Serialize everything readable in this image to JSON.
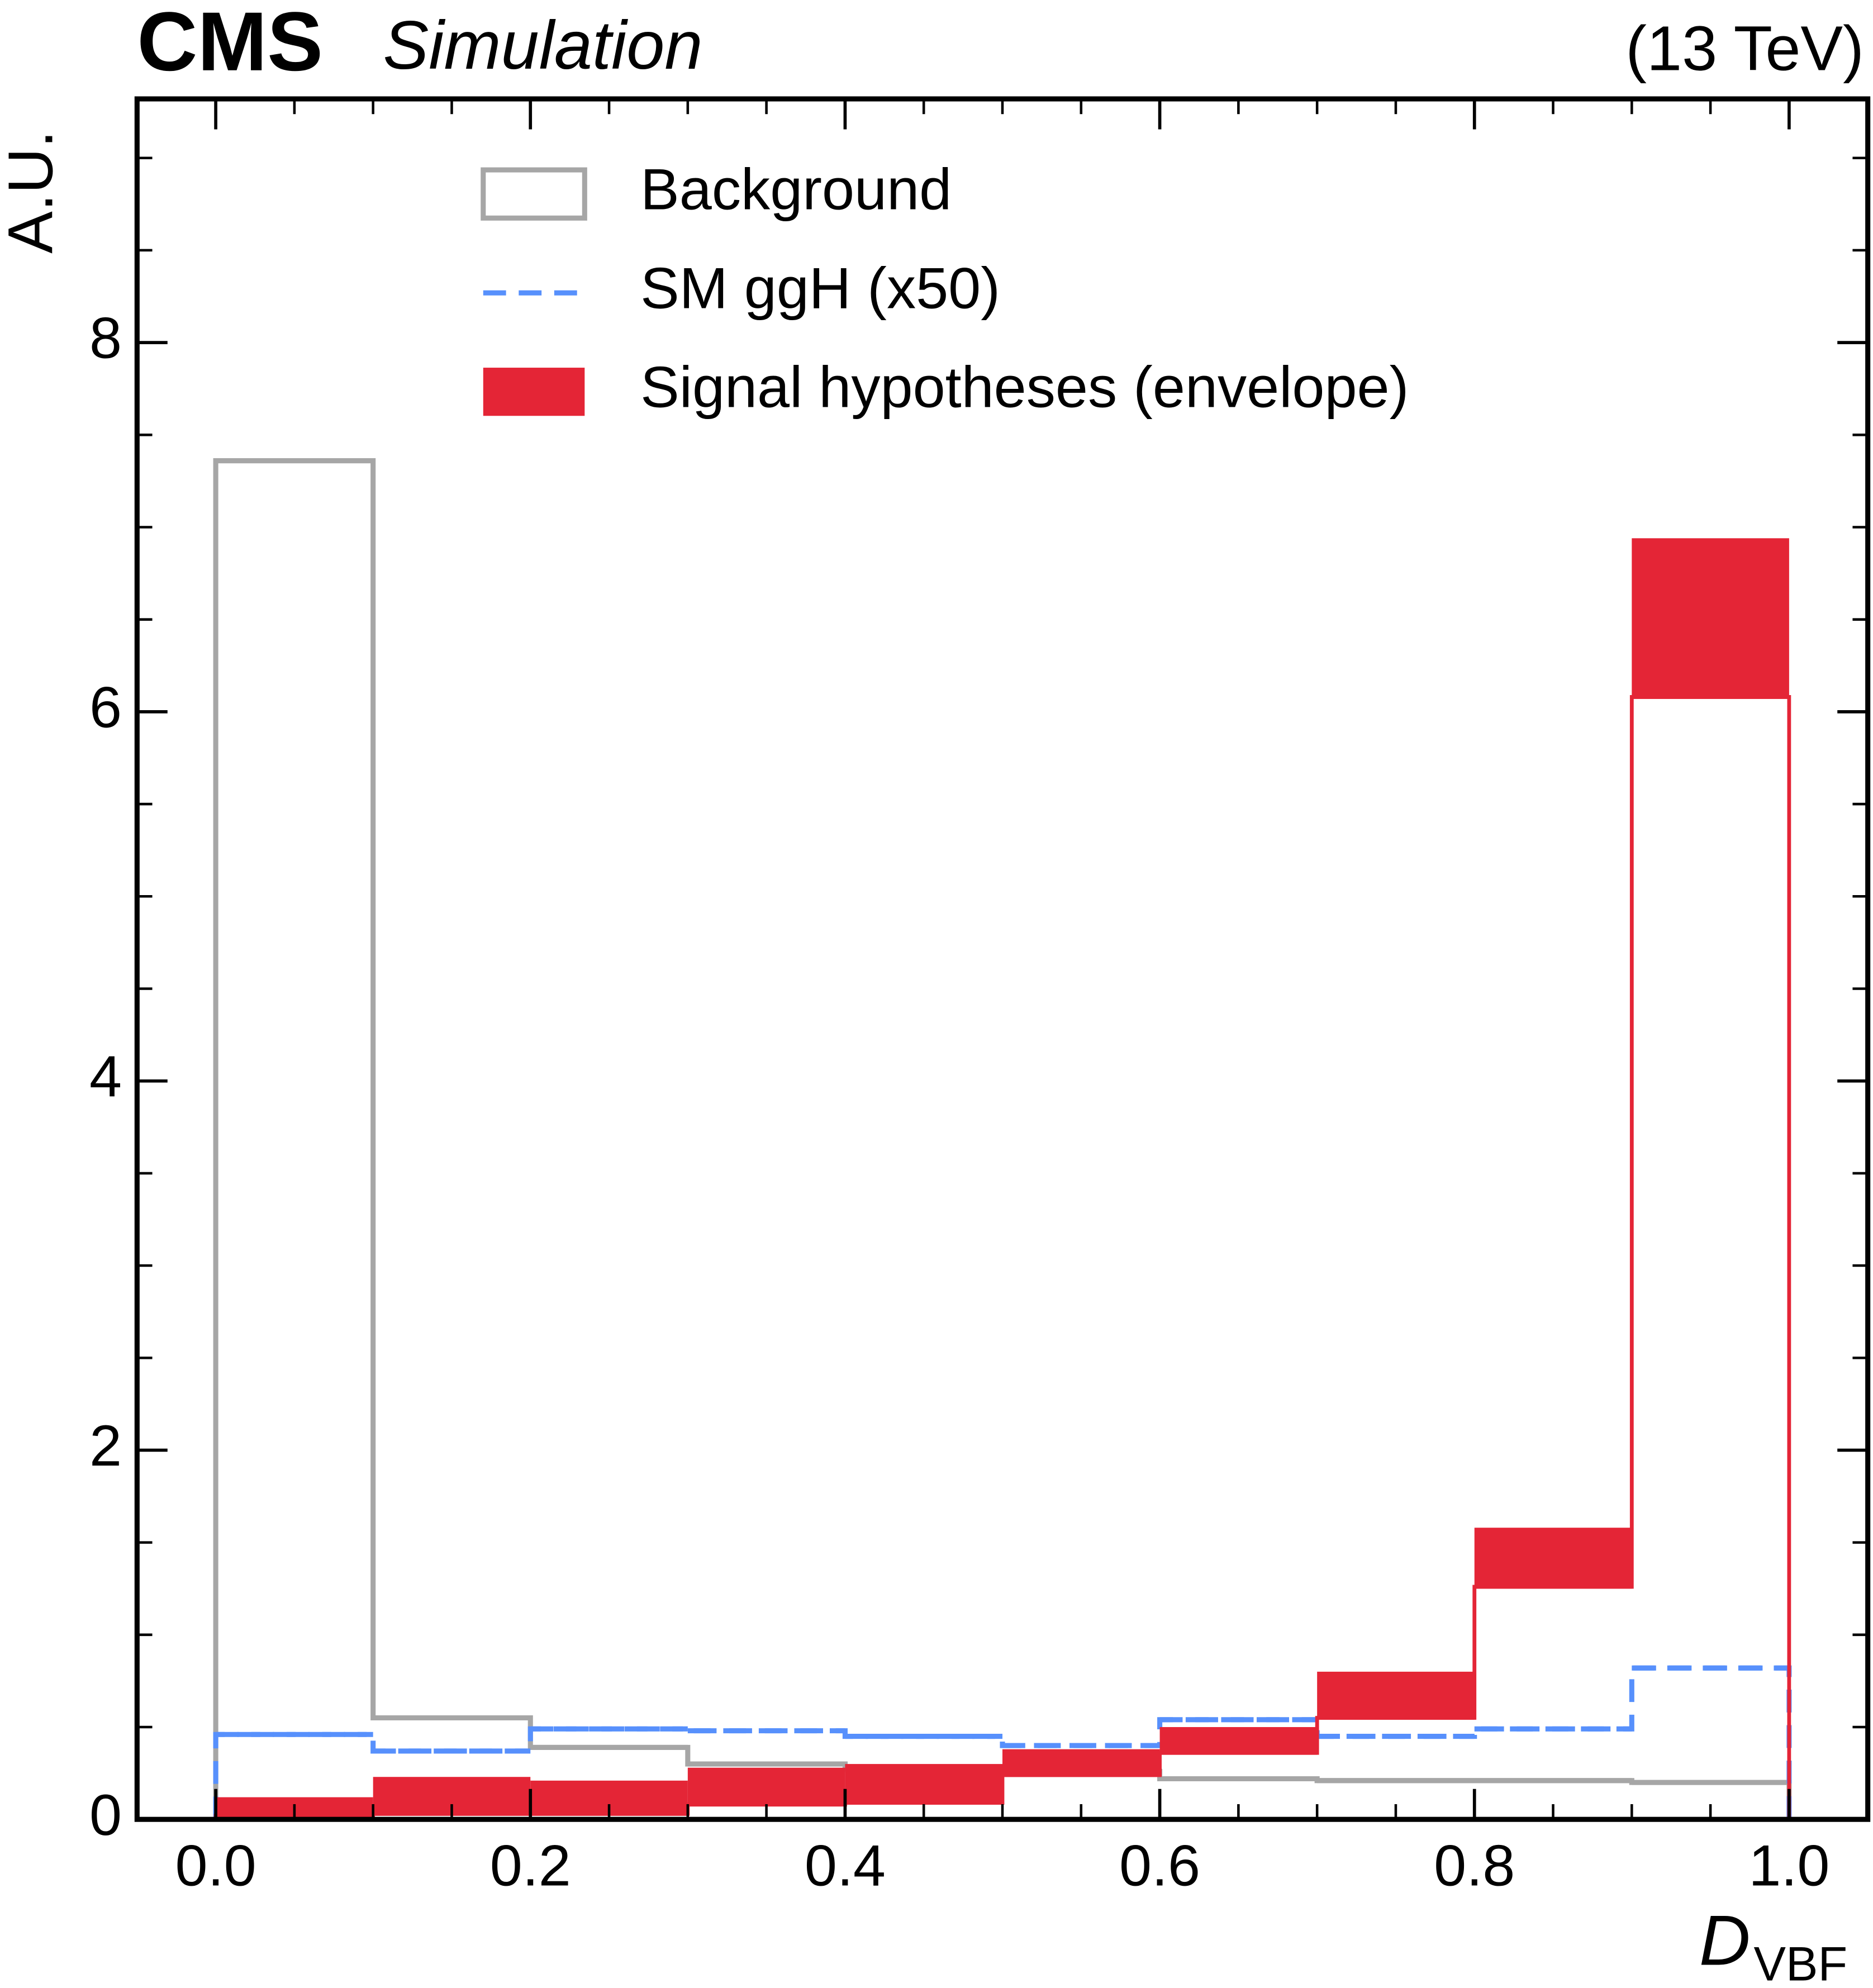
{
  "chart_data": {
    "type": "histogram",
    "experiment": "CMS",
    "status": "Simulation",
    "energy": "(13 TeV)",
    "ylabel": "A.U.",
    "xlabel": {
      "symbol": "D",
      "subscript": "VBF"
    },
    "bins": [
      0,
      0.1,
      0.2,
      0.3,
      0.4,
      0.5,
      0.6,
      0.7,
      0.8,
      0.9,
      1.0
    ],
    "series": [
      {
        "name": "Background",
        "color": "#a6a6a6",
        "style": "outline",
        "values": [
          7.36,
          0.55,
          0.39,
          0.3,
          0.27,
          0.26,
          0.22,
          0.21,
          0.21,
          0.2
        ]
      },
      {
        "name": "SM ggH (x50)",
        "color": "#5790fc",
        "style": "dashed",
        "values": [
          0.46,
          0.37,
          0.49,
          0.48,
          0.45,
          0.4,
          0.54,
          0.45,
          0.49,
          0.82
        ]
      },
      {
        "name": "Signal hypotheses (envelope)",
        "color": "#e42536",
        "style": "envelope",
        "low": [
          0.02,
          0.03,
          0.03,
          0.08,
          0.09,
          0.24,
          0.36,
          0.55,
          1.26,
          6.08
        ],
        "high": [
          0.12,
          0.23,
          0.21,
          0.28,
          0.3,
          0.38,
          0.5,
          0.8,
          1.58,
          6.94
        ]
      }
    ],
    "xlim": [
      -0.05,
      1.05
    ],
    "ylim": [
      0,
      9.32
    ],
    "xticks": [
      {
        "value": 0,
        "label": "0.0"
      },
      {
        "value": 0.2,
        "label": "0.2"
      },
      {
        "value": 0.4,
        "label": "0.4"
      },
      {
        "value": 0.6,
        "label": "0.6"
      },
      {
        "value": 0.8,
        "label": "0.8"
      },
      {
        "value": 1.0,
        "label": "1.0"
      }
    ],
    "yticks": [
      0,
      2,
      4,
      6,
      8
    ],
    "legend": "top"
  }
}
